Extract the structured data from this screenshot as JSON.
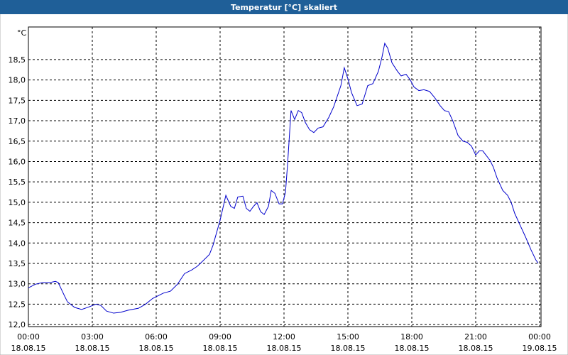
{
  "chart_data": {
    "type": "line",
    "title": "Temperatur [°C] skaliert",
    "y_label": "°C",
    "color": "#0000cc",
    "grid": true,
    "xlim": [
      0,
      24
    ],
    "ylim": [
      11.95,
      19.3
    ],
    "xticks": [
      {
        "value": 0,
        "label": "00:00\n18.08.15"
      },
      {
        "value": 3,
        "label": "03:00\n18.08.15"
      },
      {
        "value": 6,
        "label": "06:00\n18.08.15"
      },
      {
        "value": 9,
        "label": "09:00\n18.08.15"
      },
      {
        "value": 12,
        "label": "12:00\n18.08.15"
      },
      {
        "value": 15,
        "label": "15:00\n18.08.15"
      },
      {
        "value": 18,
        "label": "18:00\n18.08.15"
      },
      {
        "value": 21,
        "label": "21:00\n18.08.15"
      },
      {
        "value": 24,
        "label": "00:00\n19.08.15"
      }
    ],
    "yticks": [
      {
        "value": 12,
        "label": "12,0"
      },
      {
        "value": 12.5,
        "label": "12,5"
      },
      {
        "value": 13,
        "label": "13,0"
      },
      {
        "value": 13.5,
        "label": "13,5"
      },
      {
        "value": 14,
        "label": "14,0"
      },
      {
        "value": 14.5,
        "label": "14,5"
      },
      {
        "value": 15,
        "label": "15,0"
      },
      {
        "value": 15.5,
        "label": "15,5"
      },
      {
        "value": 16,
        "label": "16,0"
      },
      {
        "value": 16.5,
        "label": "16,5"
      },
      {
        "value": 17,
        "label": "17,0"
      },
      {
        "value": 17.5,
        "label": "17,5"
      },
      {
        "value": 18,
        "label": "18,0"
      },
      {
        "value": 18.5,
        "label": "18,5"
      }
    ],
    "x": [
      0,
      0.33,
      0.67,
      1,
      1.27,
      1.4,
      1.67,
      1.83,
      2.17,
      2.5,
      2.83,
      3.17,
      3.4,
      3.67,
      4,
      4.33,
      4.67,
      5.17,
      5.5,
      5.83,
      6.33,
      6.67,
      7,
      7.33,
      7.67,
      7.93,
      8.17,
      8.5,
      8.67,
      9,
      9.27,
      9.5,
      9.67,
      9.83,
      10.07,
      10.23,
      10.4,
      10.57,
      10.73,
      10.9,
      11.07,
      11.27,
      11.4,
      11.57,
      11.77,
      11.93,
      12.07,
      12.17,
      12.33,
      12.5,
      12.67,
      12.83,
      13,
      13.2,
      13.4,
      13.6,
      13.83,
      14.1,
      14.33,
      14.5,
      14.67,
      14.83,
      15,
      15.17,
      15.43,
      15.67,
      15.93,
      16.17,
      16.43,
      16.6,
      16.73,
      16.87,
      17.07,
      17.33,
      17.5,
      17.73,
      17.93,
      18.1,
      18.33,
      18.57,
      18.83,
      19.07,
      19.33,
      19.53,
      19.73,
      19.93,
      20.17,
      20.4,
      20.6,
      20.8,
      21,
      21.17,
      21.33,
      21.67,
      21.83,
      22,
      22.27,
      22.5,
      22.67,
      22.83,
      23.1,
      23.33,
      23.6,
      23.83,
      23.93
    ],
    "values": [
      12.9,
      12.99,
      13.03,
      13.03,
      13.06,
      13.03,
      12.73,
      12.56,
      12.42,
      12.37,
      12.43,
      12.5,
      12.47,
      12.33,
      12.28,
      12.3,
      12.35,
      12.4,
      12.5,
      12.64,
      12.77,
      12.82,
      12.99,
      13.25,
      13.34,
      13.43,
      13.55,
      13.72,
      13.95,
      14.56,
      15.17,
      14.9,
      14.85,
      15.13,
      15.15,
      14.85,
      14.78,
      14.9,
      14.99,
      14.77,
      14.7,
      14.9,
      15.29,
      15.22,
      14.96,
      14.96,
      15.25,
      15.95,
      17.25,
      17.03,
      17.25,
      17.2,
      16.96,
      16.78,
      16.71,
      16.82,
      16.85,
      17.08,
      17.34,
      17.6,
      17.86,
      18.3,
      18.03,
      17.69,
      17.37,
      17.41,
      17.86,
      17.91,
      18.21,
      18.56,
      18.9,
      18.78,
      18.42,
      18.21,
      18.1,
      18.14,
      18,
      17.83,
      17.74,
      17.76,
      17.72,
      17.57,
      17.37,
      17.25,
      17.22,
      16.99,
      16.64,
      16.5,
      16.47,
      16.38,
      16.16,
      16.26,
      16.26,
      16.03,
      15.86,
      15.6,
      15.29,
      15.17,
      14.99,
      14.73,
      14.42,
      14.16,
      13.83,
      13.58,
      13.51
    ]
  }
}
